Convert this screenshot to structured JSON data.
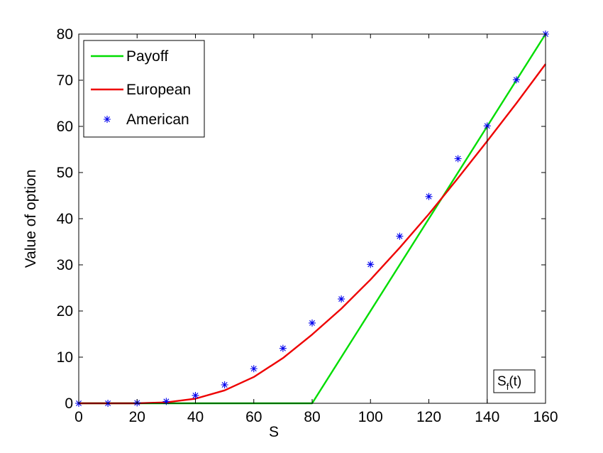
{
  "chart_data": {
    "type": "line",
    "xlabel": "S",
    "ylabel": "Value of option",
    "xlim": [
      0,
      160
    ],
    "ylim": [
      0,
      80
    ],
    "xticks": [
      0,
      20,
      40,
      60,
      80,
      100,
      120,
      140,
      160
    ],
    "yticks": [
      0,
      10,
      20,
      30,
      40,
      50,
      60,
      70,
      80
    ],
    "grid": false,
    "legend_position": "top-left",
    "series": [
      {
        "name": "Payoff",
        "style": "line",
        "color": "#00dd00",
        "x": [
          0,
          80,
          160
        ],
        "y": [
          0,
          0,
          80
        ]
      },
      {
        "name": "European",
        "style": "line",
        "color": "#ee0000",
        "x": [
          0,
          10,
          20,
          30,
          40,
          50,
          60,
          70,
          80,
          90,
          100,
          110,
          120,
          130,
          140,
          150,
          160
        ],
        "y": [
          0,
          0,
          0,
          0.2,
          1.0,
          2.8,
          5.7,
          9.8,
          14.9,
          20.5,
          26.8,
          33.7,
          41.0,
          48.8,
          56.8,
          65.0,
          73.5
        ]
      },
      {
        "name": "American",
        "style": "marker",
        "marker": "*",
        "color": "#0000ee",
        "x": [
          0,
          10,
          20,
          30,
          40,
          50,
          60,
          70,
          80,
          90,
          100,
          110,
          120,
          130,
          140,
          150,
          160
        ],
        "y": [
          0,
          0,
          0.1,
          0.4,
          1.7,
          4.0,
          7.5,
          11.9,
          17.4,
          22.6,
          30.1,
          36.2,
          44.8,
          53.0,
          60.1,
          70.1,
          80.0
        ]
      }
    ],
    "annotation": {
      "label_main": "S",
      "label_sub": "f",
      "label_suffix": "(t)",
      "x": 140,
      "y_top": 60
    }
  }
}
